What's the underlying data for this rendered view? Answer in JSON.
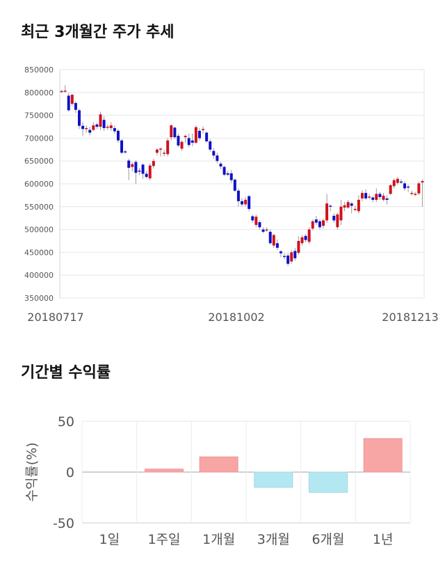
{
  "titles": {
    "price_chart": "최근 3개월간 주가 추세",
    "returns_chart": "기간별 수익률"
  },
  "colors": {
    "up": "#d0101c",
    "down": "#1010c8",
    "bar_positive": "#f7a5a5",
    "bar_negative": "#b3e8f2",
    "grid": "#e6e6e6"
  },
  "chart_data": [
    {
      "type": "candlestick",
      "title": "최근 3개월간 주가 추세",
      "y_ticks": [
        850000,
        800000,
        750000,
        700000,
        650000,
        600000,
        550000,
        500000,
        450000,
        400000,
        350000
      ],
      "y_tick_labels": [
        "850000",
        "800000",
        "750000",
        "700000",
        "650000",
        "600000",
        "550000",
        "500000",
        "450000",
        "400000",
        "350000"
      ],
      "ylim": [
        350000,
        850000
      ],
      "x_tick_labels": [
        "20180717",
        "20181002",
        "20181213"
      ],
      "candles": [
        [
          802000,
          803000,
          806000,
          800000
        ],
        [
          803000,
          804000,
          816000,
          800000
        ],
        [
          793000,
          761000,
          799000,
          758000
        ],
        [
          775000,
          795000,
          797000,
          770000
        ],
        [
          777000,
          762000,
          780000,
          755000
        ],
        [
          761000,
          727000,
          765000,
          720000
        ],
        [
          727000,
          720000,
          735000,
          705000
        ],
        [
          722000,
          722000,
          728000,
          712000
        ],
        [
          718000,
          712000,
          725000,
          706000
        ],
        [
          718000,
          728000,
          735000,
          715000
        ],
        [
          730000,
          725000,
          734000,
          720000
        ],
        [
          725000,
          752000,
          758000,
          718000
        ],
        [
          740000,
          722000,
          748000,
          716000
        ],
        [
          725000,
          725000,
          730000,
          718000
        ],
        [
          722000,
          728000,
          735000,
          716000
        ],
        [
          722000,
          715000,
          728000,
          710000
        ],
        [
          716000,
          695000,
          720000,
          690000
        ],
        [
          695000,
          668000,
          698000,
          665000
        ],
        [
          671000,
          670000,
          674000,
          666000
        ],
        [
          651000,
          635000,
          655000,
          608000
        ],
        [
          637000,
          643000,
          648000,
          627000
        ],
        [
          648000,
          624000,
          652000,
          600000
        ],
        [
          629000,
          628000,
          635000,
          619000
        ],
        [
          642000,
          622000,
          645000,
          611000
        ],
        [
          622000,
          615000,
          628000,
          612000
        ],
        [
          612000,
          640000,
          645000,
          608000
        ],
        [
          639000,
          650000,
          655000,
          633000
        ],
        [
          668000,
          675000,
          678000,
          662000
        ],
        [
          675000,
          677000,
          680000,
          660000
        ],
        [
          666000,
          668000,
          674000,
          660000
        ],
        [
          665000,
          695000,
          700000,
          660000
        ],
        [
          702000,
          728000,
          730000,
          695000
        ],
        [
          723000,
          702000,
          725000,
          698000
        ],
        [
          705000,
          684000,
          710000,
          680000
        ],
        [
          677000,
          692000,
          695000,
          672000
        ],
        [
          702000,
          705000,
          708000,
          690000
        ],
        [
          700000,
          685000,
          710000,
          680000
        ],
        [
          695000,
          690000,
          710000,
          682000
        ],
        [
          690000,
          724000,
          728000,
          688000
        ],
        [
          716000,
          700000,
          722000,
          695000
        ],
        [
          718000,
          720000,
          726000,
          710000
        ],
        [
          712000,
          693000,
          715000,
          690000
        ],
        [
          693000,
          675000,
          698000,
          670000
        ],
        [
          672000,
          662000,
          678000,
          655000
        ],
        [
          662000,
          650000,
          668000,
          645000
        ],
        [
          644000,
          638000,
          648000,
          632000
        ],
        [
          637000,
          620000,
          640000,
          617000
        ],
        [
          623000,
          620000,
          628000,
          617000
        ],
        [
          623000,
          608000,
          630000,
          602000
        ],
        [
          609000,
          585000,
          612000,
          582000
        ],
        [
          585000,
          562000,
          590000,
          550000
        ],
        [
          562000,
          555000,
          568000,
          550000
        ],
        [
          555000,
          565000,
          571000,
          550000
        ],
        [
          573000,
          545000,
          575000,
          540000
        ],
        [
          529000,
          520000,
          532000,
          515000
        ],
        [
          510000,
          528000,
          532000,
          505000
        ],
        [
          516000,
          505000,
          520000,
          500000
        ],
        [
          500000,
          495000,
          505000,
          492000
        ],
        [
          500000,
          500000,
          505000,
          495000
        ],
        [
          495000,
          470000,
          500000,
          467000
        ],
        [
          465000,
          488000,
          490000,
          460000
        ],
        [
          470000,
          460000,
          478000,
          455000
        ],
        [
          452000,
          448000,
          455000,
          440000
        ],
        [
          442000,
          440000,
          448000,
          435000
        ],
        [
          443000,
          425000,
          448000,
          420000
        ],
        [
          430000,
          450000,
          455000,
          425000
        ],
        [
          453000,
          437000,
          460000,
          432000
        ],
        [
          449000,
          475000,
          485000,
          445000
        ],
        [
          470000,
          483000,
          488000,
          465000
        ],
        [
          486000,
          477000,
          490000,
          472000
        ],
        [
          473000,
          500000,
          505000,
          468000
        ],
        [
          502000,
          518000,
          522000,
          498000
        ],
        [
          522000,
          515000,
          530000,
          510000
        ],
        [
          518000,
          505000,
          522000,
          500000
        ],
        [
          508000,
          520000,
          524000,
          502000
        ],
        [
          520000,
          557000,
          578000,
          515000
        ],
        [
          552000,
          550000,
          555000,
          540000
        ],
        [
          530000,
          520000,
          535000,
          515000
        ],
        [
          505000,
          533000,
          537000,
          500000
        ],
        [
          520000,
          550000,
          565000,
          510000
        ],
        [
          548000,
          553000,
          560000,
          540000
        ],
        [
          548000,
          560000,
          565000,
          545000
        ],
        [
          557000,
          552000,
          560000,
          535000
        ],
        [
          545000,
          545000,
          552000,
          540000
        ],
        [
          540000,
          565000,
          575000,
          535000
        ],
        [
          568000,
          580000,
          586000,
          562000
        ],
        [
          580000,
          568000,
          588000,
          565000
        ],
        [
          570000,
          572000,
          578000,
          566000
        ],
        [
          570000,
          565000,
          574000,
          560000
        ],
        [
          565000,
          578000,
          590000,
          560000
        ],
        [
          578000,
          571000,
          582000,
          565000
        ],
        [
          565000,
          574000,
          580000,
          562000
        ],
        [
          568000,
          565000,
          575000,
          555000
        ],
        [
          578000,
          597000,
          600000,
          575000
        ],
        [
          595000,
          608000,
          612000,
          590000
        ],
        [
          602000,
          611000,
          615000,
          598000
        ],
        [
          605000,
          603000,
          610000,
          600000
        ],
        [
          601000,
          590000,
          606000,
          585000
        ],
        [
          594000,
          592000,
          598000,
          582000
        ],
        [
          578000,
          580000,
          585000,
          575000
        ],
        [
          577000,
          578000,
          582000,
          573000
        ],
        [
          579000,
          601000,
          605000,
          575000
        ],
        [
          603000,
          606000,
          610000,
          550000
        ]
      ]
    },
    {
      "type": "bar",
      "title": "기간별 수익률",
      "ylabel": "수익률(%)",
      "categories": [
        "1일",
        "1주일",
        "1개월",
        "3개월",
        "6개월",
        "1년"
      ],
      "values": [
        0,
        3,
        15,
        -15,
        -20,
        33
      ],
      "ylim": [
        -50,
        50
      ],
      "y_ticks": [
        50,
        0,
        -50
      ],
      "y_tick_labels": [
        "50",
        "0",
        "-50"
      ]
    }
  ]
}
